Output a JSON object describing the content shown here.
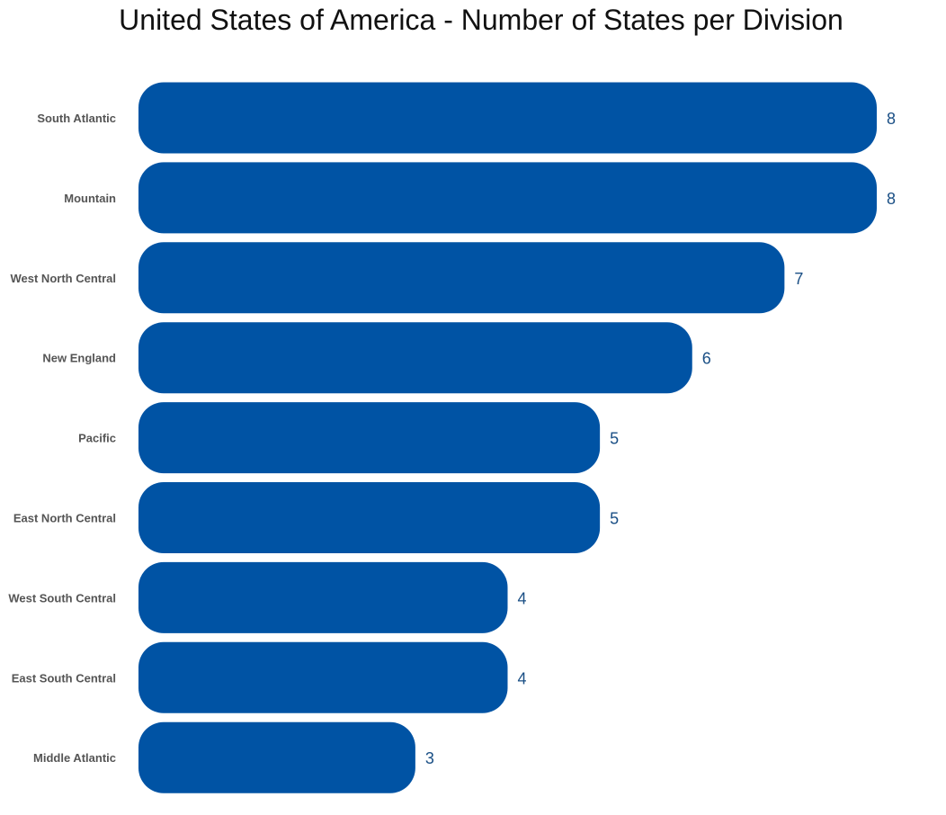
{
  "colors": {
    "bar": "#0053a4",
    "value_label": "#1a4f85",
    "category_label": "#555555",
    "title": "#111111"
  },
  "chart_data": {
    "type": "bar",
    "orientation": "horizontal",
    "title": "United States of America - Number of States per Division",
    "xlabel": "",
    "ylabel": "",
    "categories": [
      "South Atlantic",
      "Mountain",
      "West North Central",
      "New England",
      "Pacific",
      "East North Central",
      "West South Central",
      "East South Central",
      "Middle Atlantic"
    ],
    "values": [
      8,
      8,
      7,
      6,
      5,
      5,
      4,
      4,
      3
    ],
    "xlim": [
      0,
      8
    ],
    "grid": false,
    "legend": "none",
    "data_labels": true
  }
}
